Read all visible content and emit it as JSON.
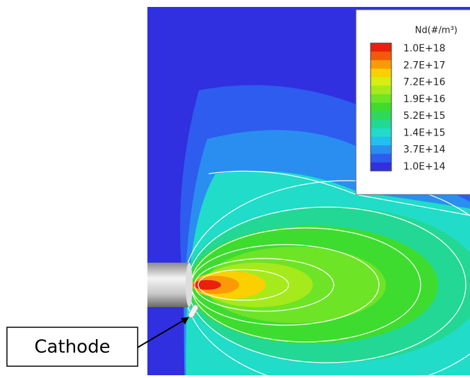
{
  "legend": {
    "title": "Nd(#/m³)",
    "labels": [
      "1.0E+18",
      "2.7E+17",
      "7.2E+16",
      "1.9E+16",
      "5.2E+15",
      "1.4E+15",
      "3.7E+14",
      "1.0E+14"
    ],
    "colors": [
      "#e8200c",
      "#f25a0a",
      "#f99a06",
      "#fbd000",
      "#d6ee10",
      "#a6ea1c",
      "#6ee426",
      "#3edc2e",
      "#2ed85a",
      "#22d894",
      "#20dcc8",
      "#22c0ee",
      "#2a8ef0",
      "#2e5cee",
      "#3030e0"
    ]
  },
  "callout": {
    "label": "Cathode"
  }
}
